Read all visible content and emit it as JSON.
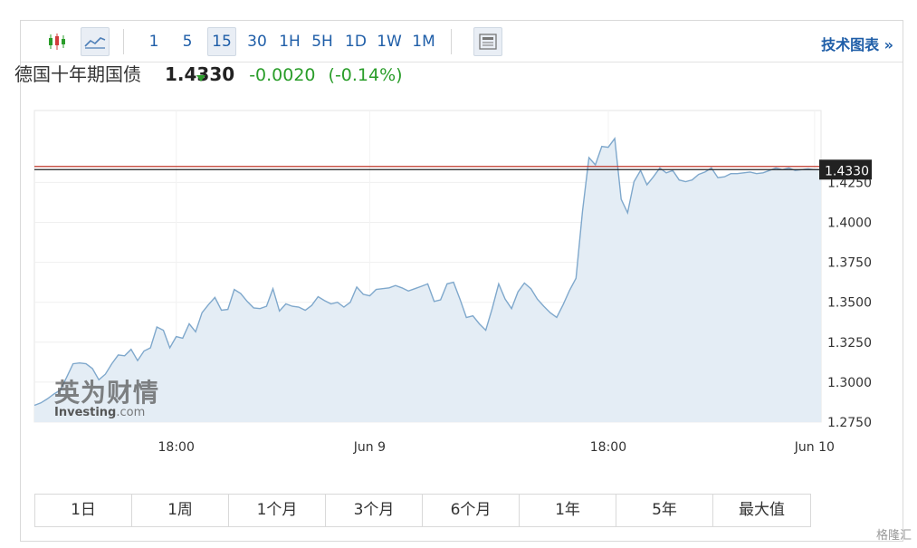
{
  "toolbar": {
    "candle_icon": "candlestick-icon",
    "line_icon": "line-chart-icon",
    "intervals": [
      "1",
      "5",
      "15",
      "30",
      "1H",
      "5H",
      "1D",
      "1W",
      "1M"
    ],
    "active_interval": "15",
    "news_icon": "newspaper-icon",
    "tech_chart_label": "技术图表 »"
  },
  "quote": {
    "name": "德国十年期国债",
    "price": "1.4330",
    "change": "-0.0020",
    "change_pct": "(-0.14%)",
    "down_color": "#2a9d2a"
  },
  "watermark": {
    "cn": "英为财情",
    "en_main": "Investing",
    "en_suffix": ".com"
  },
  "ranges": [
    "1日",
    "1周",
    "1个月",
    "3个月",
    "6个月",
    "1年",
    "5年",
    "最大值"
  ],
  "corner_logo": "格隆汇",
  "chart_data": {
    "type": "area",
    "title": "",
    "xlabel": "",
    "ylabel": "",
    "ylim": [
      1.275,
      1.47
    ],
    "y_ticks": [
      "1.2750",
      "1.3000",
      "1.3250",
      "1.3500",
      "1.3750",
      "1.4000",
      "1.4250"
    ],
    "x_ticks": [
      "18:00",
      "Jun 9",
      "18:00",
      "Jun 10"
    ],
    "x_tick_index": [
      22,
      52,
      89,
      121
    ],
    "current_value": 1.433,
    "current_label": "1.4330",
    "reference_line": 1.435,
    "line_color": "#7fa8cc",
    "fill_color": "#e4edf5",
    "reference_color": "#c0392b",
    "values": [
      1.2855,
      1.287,
      1.2895,
      1.2925,
      1.295,
      1.303,
      1.3115,
      1.312,
      1.3115,
      1.3085,
      1.3015,
      1.305,
      1.3115,
      1.317,
      1.3165,
      1.3205,
      1.3135,
      1.3195,
      1.3215,
      1.3345,
      1.3325,
      1.3215,
      1.3285,
      1.3275,
      1.3365,
      1.3315,
      1.3435,
      1.3485,
      1.353,
      1.345,
      1.3455,
      1.358,
      1.3555,
      1.3505,
      1.3465,
      1.346,
      1.3475,
      1.3585,
      1.3445,
      1.349,
      1.3475,
      1.347,
      1.345,
      1.348,
      1.3535,
      1.351,
      1.349,
      1.35,
      1.347,
      1.35,
      1.3595,
      1.355,
      1.354,
      1.358,
      1.3585,
      1.359,
      1.3605,
      1.359,
      1.357,
      1.3585,
      1.36,
      1.3615,
      1.3505,
      1.3515,
      1.3615,
      1.3625,
      1.352,
      1.3405,
      1.3415,
      1.3365,
      1.3325,
      1.346,
      1.3615,
      1.352,
      1.346,
      1.3565,
      1.362,
      1.3585,
      1.352,
      1.3475,
      1.3435,
      1.3405,
      1.3485,
      1.3575,
      1.365,
      1.407,
      1.4405,
      1.436,
      1.4475,
      1.447,
      1.4525,
      1.4145,
      1.406,
      1.4255,
      1.4325,
      1.4235,
      1.4285,
      1.434,
      1.431,
      1.4325,
      1.4265,
      1.4255,
      1.4265,
      1.43,
      1.4315,
      1.434,
      1.428,
      1.4285,
      1.4305,
      1.4305,
      1.431,
      1.4315,
      1.4305,
      1.431,
      1.4325,
      1.434,
      1.433,
      1.434,
      1.4325,
      1.433,
      1.4335,
      1.433,
      1.433
    ]
  }
}
